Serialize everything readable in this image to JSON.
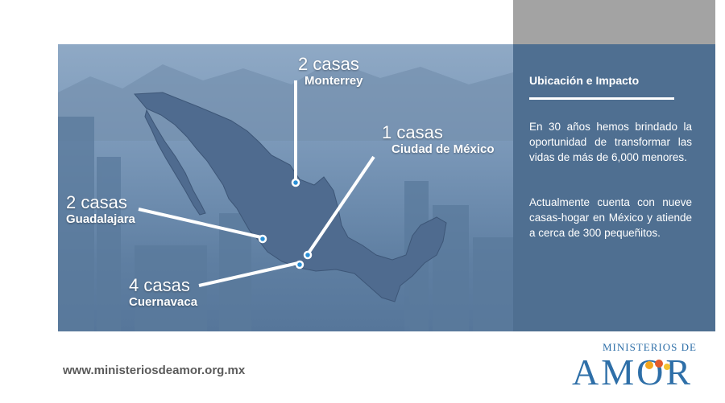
{
  "panel": {
    "title": "Ubicación e Impacto",
    "paragraph1": "En 30 años hemos brindado la oportunidad de transformar las vidas de más de 6,000 menores.",
    "paragraph2": "Actualmente cuenta con nueve casas-hogar en México y atiende a cerca de 300 pequeñitos."
  },
  "locations": [
    {
      "count": "2 casas",
      "city": "Monterrey"
    },
    {
      "count": "1 casas",
      "city": "Ciudad de México"
    },
    {
      "count": "2 casas",
      "city": "Guadalajara"
    },
    {
      "count": "4 casas",
      "city": "Cuernavaca"
    }
  ],
  "footer": {
    "url": "www.ministeriosdeamor.org.mx"
  },
  "logo": {
    "top_text": "MINISTERIOS DE",
    "word": "AMOR"
  },
  "colors": {
    "panel": "#4f6f91",
    "map": "#4f6b8f",
    "accent": "#2e6fa8",
    "header_gray": "#a3a3a3"
  }
}
